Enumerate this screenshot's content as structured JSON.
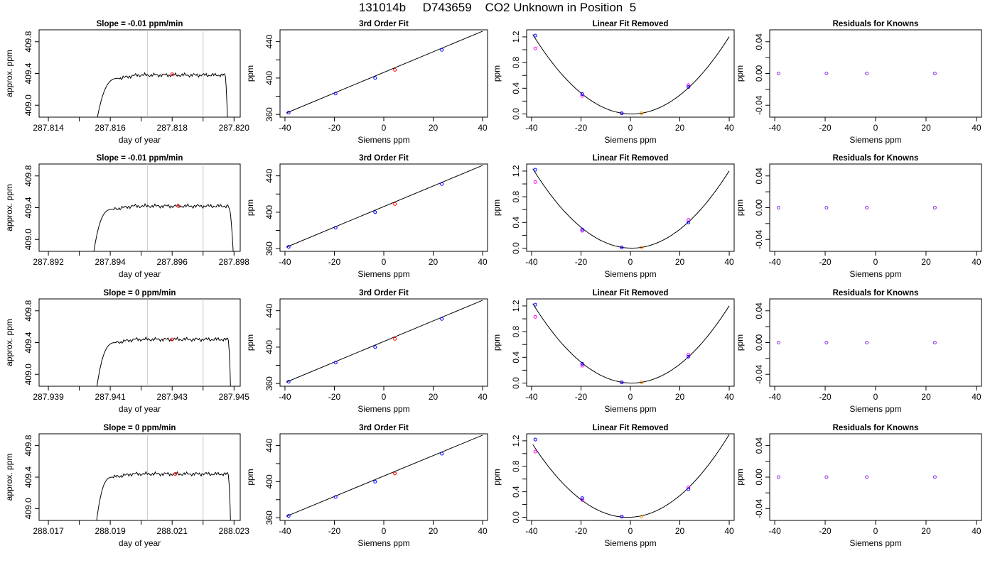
{
  "figure_title": "131014b     D743659    CO2 Unknown in Position  5",
  "colors": {
    "curve": "#000000",
    "vline": "#c8c8c8",
    "known_blue": "#0000ff",
    "known_magenta": "#ff00ff",
    "unknown_red": "#ff0000",
    "unknown_orange": "#ff8c00",
    "residual_purple": "#8a2be2"
  },
  "chart_data": [
    {
      "row": 0,
      "col": 0,
      "type": "line",
      "title": "Slope =  -0.01  ppm/min",
      "xlabel": "day of year",
      "ylabel": "approx. ppm",
      "xlim": [
        287.8137,
        287.8202
      ],
      "ylim": [
        408.85,
        409.95
      ],
      "xticks": [
        287.814,
        287.816,
        287.818,
        287.82
      ],
      "xtick_labels": [
        "287.814",
        "287.816",
        "287.818",
        "287.820"
      ],
      "xminor": [
        287.815,
        287.817,
        287.819
      ],
      "yticks": [
        409.0,
        409.4,
        409.8
      ],
      "ytick_labels": [
        "409.0",
        "409.4",
        "409.8"
      ],
      "trace": {
        "start": 287.8155,
        "rise_end": 287.8163,
        "plateau": 409.38,
        "fall_start": 287.8197,
        "end": 287.8198
      },
      "vlines": [
        287.8172,
        287.819
      ],
      "marker": {
        "x": 287.818,
        "y": 409.39
      }
    },
    {
      "row": 0,
      "col": 1,
      "type": "scatter",
      "title": "3rd Order Fit",
      "xlabel": "Siemens ppm",
      "ylabel": "ppm",
      "xlim": [
        -42,
        42
      ],
      "ylim": [
        357,
        453
      ],
      "xticks": [
        -40,
        -20,
        0,
        20,
        40
      ],
      "xtick_labels": [
        "-40",
        "-20",
        "0",
        "20",
        "40"
      ],
      "yticks": [
        360,
        400,
        440
      ],
      "ytick_labels": [
        "360",
        "400",
        "440"
      ],
      "yminor": [
        380,
        420
      ],
      "line": {
        "x": [
          -39.5,
          40
        ],
        "y": [
          361.5,
          451.5
        ]
      },
      "knowns": [
        {
          "x": -38.5,
          "y": 362
        },
        {
          "x": -19.5,
          "y": 383
        },
        {
          "x": -3.5,
          "y": 400
        },
        {
          "x": 23.5,
          "y": 431
        }
      ],
      "unknown": {
        "x": 4.5,
        "y": 409
      }
    },
    {
      "row": 0,
      "col": 2,
      "type": "scatter",
      "title": "Linear Fit Removed",
      "xlabel": "Siemens ppm",
      "ylabel": "ppm",
      "xlim": [
        -42,
        42
      ],
      "ylim": [
        -0.05,
        1.31
      ],
      "xticks": [
        -40,
        -20,
        0,
        20,
        40
      ],
      "xtick_labels": [
        "-40",
        "-20",
        "0",
        "20",
        "40"
      ],
      "yticks": [
        0.0,
        0.4,
        0.8,
        1.2
      ],
      "ytick_labels": [
        "0.0",
        "0.4",
        "0.8",
        "1.2"
      ],
      "yminor": [
        0.2,
        0.6,
        1.0
      ],
      "curve": {
        "a": 0.000772,
        "b": -0.0008,
        "c": 0.0,
        "x0": -39.5,
        "x1": 40
      },
      "knowns_blue": [
        {
          "x": -38.5,
          "y": 1.22
        },
        {
          "x": -19.5,
          "y": 0.31
        },
        {
          "x": -3.5,
          "y": 0.01
        },
        {
          "x": 23.5,
          "y": 0.42
        }
      ],
      "knowns_magenta": [
        {
          "x": -38.5,
          "y": 1.02
        },
        {
          "x": -19.5,
          "y": 0.28
        },
        {
          "x": -3.5,
          "y": 0.01
        },
        {
          "x": 23.5,
          "y": 0.45
        }
      ],
      "unknown": {
        "x": 4.5,
        "y": 0.01
      }
    },
    {
      "row": 0,
      "col": 3,
      "type": "scatter",
      "title": "Residuals for Knowns",
      "xlabel": "Siemens ppm",
      "ylabel": "ppm",
      "xlim": [
        -42,
        42
      ],
      "ylim": [
        -0.055,
        0.055
      ],
      "xticks": [
        -40,
        -20,
        0,
        20,
        40
      ],
      "xtick_labels": [
        "-40",
        "-20",
        "0",
        "20",
        "40"
      ],
      "yticks": [
        -0.04,
        0.0,
        0.04
      ],
      "ytick_labels": [
        "-0.04",
        "0.00",
        "0.04"
      ],
      "yminor": [
        -0.02,
        0.02
      ],
      "points": [
        {
          "x": -38.5,
          "y": 0
        },
        {
          "x": -19.5,
          "y": 0
        },
        {
          "x": -3.5,
          "y": 0
        },
        {
          "x": 23.5,
          "y": 0
        }
      ]
    },
    {
      "row": 1,
      "col": 0,
      "type": "line",
      "title": "Slope =  -0.01  ppm/min",
      "xlabel": "day of year",
      "ylabel": "approx. ppm",
      "xlim": [
        287.8917,
        287.8982
      ],
      "ylim": [
        408.85,
        409.95
      ],
      "xticks": [
        287.892,
        287.894,
        287.896,
        287.898
      ],
      "xtick_labels": [
        "287.892",
        "287.894",
        "287.896",
        "287.898"
      ],
      "xminor": [
        287.893,
        287.895,
        287.897
      ],
      "yticks": [
        409.0,
        409.4,
        409.8
      ],
      "ytick_labels": [
        "409.0",
        "409.4",
        "409.8"
      ],
      "trace": {
        "start": 287.8934,
        "rise_end": 287.8941,
        "plateau": 409.42,
        "fall_start": 287.8978,
        "end": 287.898
      },
      "vlines": [
        287.8952,
        287.897
      ],
      "marker": {
        "x": 287.8962,
        "y": 409.42
      }
    },
    {
      "row": 1,
      "col": 1,
      "type": "scatter",
      "title": "3rd Order Fit",
      "xlabel": "Siemens ppm",
      "ylabel": "ppm",
      "xlim": [
        -42,
        42
      ],
      "ylim": [
        357,
        453
      ],
      "xticks": [
        -40,
        -20,
        0,
        20,
        40
      ],
      "xtick_labels": [
        "-40",
        "-20",
        "0",
        "20",
        "40"
      ],
      "yticks": [
        360,
        400,
        440
      ],
      "ytick_labels": [
        "360",
        "400",
        "440"
      ],
      "yminor": [
        380,
        420
      ],
      "line": {
        "x": [
          -39.5,
          40
        ],
        "y": [
          361.5,
          451.5
        ]
      },
      "knowns": [
        {
          "x": -38.5,
          "y": 362
        },
        {
          "x": -19.5,
          "y": 383
        },
        {
          "x": -3.5,
          "y": 400
        },
        {
          "x": 23.5,
          "y": 431
        }
      ],
      "unknown": {
        "x": 4.5,
        "y": 409
      }
    },
    {
      "row": 1,
      "col": 2,
      "type": "scatter",
      "title": "Linear Fit Removed",
      "xlabel": "Siemens ppm",
      "ylabel": "ppm",
      "xlim": [
        -42,
        42
      ],
      "ylim": [
        -0.05,
        1.31
      ],
      "xticks": [
        -40,
        -20,
        0,
        20,
        40
      ],
      "xtick_labels": [
        "-40",
        "-20",
        "0",
        "20",
        "40"
      ],
      "yticks": [
        0.0,
        0.4,
        0.8,
        1.2
      ],
      "ytick_labels": [
        "0.0",
        "0.4",
        "0.8",
        "1.2"
      ],
      "yminor": [
        0.2,
        0.6,
        1.0
      ],
      "curve": {
        "a": 0.000772,
        "b": -0.0008,
        "c": 0.0,
        "x0": -39.5,
        "x1": 40
      },
      "knowns_blue": [
        {
          "x": -38.5,
          "y": 1.22
        },
        {
          "x": -19.5,
          "y": 0.29
        },
        {
          "x": -3.5,
          "y": 0.01
        },
        {
          "x": 23.5,
          "y": 0.4
        }
      ],
      "knowns_magenta": [
        {
          "x": -38.5,
          "y": 1.03
        },
        {
          "x": -19.5,
          "y": 0.27
        },
        {
          "x": -3.5,
          "y": 0.01
        },
        {
          "x": 23.5,
          "y": 0.44
        }
      ],
      "unknown": {
        "x": 4.5,
        "y": 0.01
      }
    },
    {
      "row": 1,
      "col": 3,
      "type": "scatter",
      "title": "Residuals for Knowns",
      "xlabel": "Siemens ppm",
      "ylabel": "ppm",
      "xlim": [
        -42,
        42
      ],
      "ylim": [
        -0.055,
        0.055
      ],
      "xticks": [
        -40,
        -20,
        0,
        20,
        40
      ],
      "xtick_labels": [
        "-40",
        "-20",
        "0",
        "20",
        "40"
      ],
      "yticks": [
        -0.04,
        0.0,
        0.04
      ],
      "ytick_labels": [
        "-0.04",
        "0.00",
        "0.04"
      ],
      "yminor": [
        -0.02,
        0.02
      ],
      "points": [
        {
          "x": -38.5,
          "y": 0
        },
        {
          "x": -19.5,
          "y": 0
        },
        {
          "x": -3.5,
          "y": 0
        },
        {
          "x": 23.5,
          "y": 0
        }
      ]
    },
    {
      "row": 2,
      "col": 0,
      "type": "line",
      "title": "Slope =  0  ppm/min",
      "xlabel": "day of year",
      "ylabel": "approx. ppm",
      "xlim": [
        287.9387,
        287.9452
      ],
      "ylim": [
        408.85,
        409.95
      ],
      "xticks": [
        287.939,
        287.941,
        287.943,
        287.945
      ],
      "xtick_labels": [
        "287.939",
        "287.941",
        "287.943",
        "287.945"
      ],
      "xminor": [
        287.94,
        287.942,
        287.944
      ],
      "yticks": [
        409.0,
        409.4,
        409.8
      ],
      "ytick_labels": [
        "409.0",
        "409.4",
        "409.8"
      ],
      "trace": {
        "start": 287.9405,
        "rise_end": 287.9412,
        "plateau": 409.44,
        "fall_start": 287.9448,
        "end": 287.9449
      },
      "vlines": [
        287.9422,
        287.944
      ],
      "marker": {
        "x": 287.943,
        "y": 409.44
      }
    },
    {
      "row": 2,
      "col": 1,
      "type": "scatter",
      "title": "3rd Order Fit",
      "xlabel": "Siemens ppm",
      "ylabel": "ppm",
      "xlim": [
        -42,
        42
      ],
      "ylim": [
        357,
        453
      ],
      "xticks": [
        -40,
        -20,
        0,
        20,
        40
      ],
      "xtick_labels": [
        "-40",
        "-20",
        "0",
        "20",
        "40"
      ],
      "yticks": [
        360,
        400,
        440
      ],
      "ytick_labels": [
        "360",
        "400",
        "440"
      ],
      "yminor": [
        380,
        420
      ],
      "line": {
        "x": [
          -39.5,
          40
        ],
        "y": [
          361.5,
          451.5
        ]
      },
      "knowns": [
        {
          "x": -38.5,
          "y": 362
        },
        {
          "x": -19.5,
          "y": 383
        },
        {
          "x": -3.5,
          "y": 400
        },
        {
          "x": 23.5,
          "y": 431
        }
      ],
      "unknown": {
        "x": 4.5,
        "y": 409
      }
    },
    {
      "row": 2,
      "col": 2,
      "type": "scatter",
      "title": "Linear Fit Removed",
      "xlabel": "Siemens ppm",
      "ylabel": "ppm",
      "xlim": [
        -42,
        42
      ],
      "ylim": [
        -0.05,
        1.31
      ],
      "xticks": [
        -40,
        -20,
        0,
        20,
        40
      ],
      "xtick_labels": [
        "-40",
        "-20",
        "0",
        "20",
        "40"
      ],
      "yticks": [
        0.0,
        0.4,
        0.8,
        1.2
      ],
      "ytick_labels": [
        "0.0",
        "0.4",
        "0.8",
        "1.2"
      ],
      "yminor": [
        0.2,
        0.6,
        1.0
      ],
      "curve": {
        "a": 0.000772,
        "b": -0.0008,
        "c": 0.0,
        "x0": -39.5,
        "x1": 40
      },
      "knowns_blue": [
        {
          "x": -38.5,
          "y": 1.22
        },
        {
          "x": -19.5,
          "y": 0.3
        },
        {
          "x": -3.5,
          "y": 0.01
        },
        {
          "x": 23.5,
          "y": 0.41
        }
      ],
      "knowns_magenta": [
        {
          "x": -38.5,
          "y": 1.03
        },
        {
          "x": -19.5,
          "y": 0.27
        },
        {
          "x": -3.5,
          "y": 0.01
        },
        {
          "x": 23.5,
          "y": 0.44
        }
      ],
      "unknown": {
        "x": 4.5,
        "y": 0.01
      }
    },
    {
      "row": 2,
      "col": 3,
      "type": "scatter",
      "title": "Residuals for Knowns",
      "xlabel": "Siemens ppm",
      "ylabel": "ppm",
      "xlim": [
        -42,
        42
      ],
      "ylim": [
        -0.055,
        0.055
      ],
      "xticks": [
        -40,
        -20,
        0,
        20,
        40
      ],
      "xtick_labels": [
        "-40",
        "-20",
        "0",
        "20",
        "40"
      ],
      "yticks": [
        -0.04,
        0.0,
        0.04
      ],
      "ytick_labels": [
        "-0.04",
        "0.00",
        "0.04"
      ],
      "yminor": [
        -0.02,
        0.02
      ],
      "points": [
        {
          "x": -38.5,
          "y": 0
        },
        {
          "x": -19.5,
          "y": 0
        },
        {
          "x": -3.5,
          "y": 0
        },
        {
          "x": 23.5,
          "y": 0
        }
      ]
    },
    {
      "row": 3,
      "col": 0,
      "type": "line",
      "title": "Slope =  0  ppm/min",
      "xlabel": "day of year",
      "ylabel": "approx. ppm",
      "xlim": [
        288.0167,
        288.0232
      ],
      "ylim": [
        408.85,
        409.95
      ],
      "xticks": [
        288.017,
        288.019,
        288.021,
        288.023
      ],
      "xtick_labels": [
        "288.017",
        "288.019",
        "288.021",
        "288.023"
      ],
      "xminor": [
        288.018,
        288.02,
        288.022
      ],
      "yticks": [
        409.0,
        409.4,
        409.8
      ],
      "ytick_labels": [
        "409.0",
        "409.4",
        "409.8"
      ],
      "trace": {
        "start": 288.0185,
        "rise_end": 288.0191,
        "plateau": 409.44,
        "fall_start": 288.0228,
        "end": 288.0229
      },
      "vlines": [
        288.0202,
        288.022
      ],
      "marker": {
        "x": 288.0211,
        "y": 409.44
      }
    },
    {
      "row": 3,
      "col": 1,
      "type": "scatter",
      "title": "3rd Order Fit",
      "xlabel": "Siemens ppm",
      "ylabel": "ppm",
      "xlim": [
        -42,
        42
      ],
      "ylim": [
        357,
        453
      ],
      "xticks": [
        -40,
        -20,
        0,
        20,
        40
      ],
      "xtick_labels": [
        "-40",
        "-20",
        "0",
        "20",
        "40"
      ],
      "yticks": [
        360,
        400,
        440
      ],
      "ytick_labels": [
        "360",
        "400",
        "440"
      ],
      "yminor": [
        380,
        420
      ],
      "line": {
        "x": [
          -39.5,
          40
        ],
        "y": [
          361.5,
          451.5
        ]
      },
      "knowns": [
        {
          "x": -38.5,
          "y": 362
        },
        {
          "x": -19.5,
          "y": 383
        },
        {
          "x": -3.5,
          "y": 400
        },
        {
          "x": 23.5,
          "y": 431
        }
      ],
      "unknown": {
        "x": 4.5,
        "y": 409
      }
    },
    {
      "row": 3,
      "col": 2,
      "type": "scatter",
      "title": "Linear Fit Removed",
      "xlabel": "Siemens ppm",
      "ylabel": "ppm",
      "xlim": [
        -42,
        42
      ],
      "ylim": [
        -0.05,
        1.31
      ],
      "xticks": [
        -40,
        -20,
        0,
        20,
        40
      ],
      "xtick_labels": [
        "-40",
        "-20",
        "0",
        "20",
        "40"
      ],
      "yticks": [
        0.0,
        0.4,
        0.8,
        1.2
      ],
      "ytick_labels": [
        "0.0",
        "0.4",
        "0.8",
        "1.2"
      ],
      "yminor": [
        0.2,
        0.6,
        1.0
      ],
      "curve": {
        "a": 0.000772,
        "b": 0.0016,
        "c": 0.0,
        "x0": -39.5,
        "x1": 40
      },
      "knowns_blue": [
        {
          "x": -38.5,
          "y": 1.22
        },
        {
          "x": -19.5,
          "y": 0.3
        },
        {
          "x": -3.5,
          "y": 0.01
        },
        {
          "x": 23.5,
          "y": 0.44
        }
      ],
      "knowns_magenta": [
        {
          "x": -38.5,
          "y": 1.03
        },
        {
          "x": -19.5,
          "y": 0.27
        },
        {
          "x": -3.5,
          "y": 0.01
        },
        {
          "x": 23.5,
          "y": 0.47
        }
      ],
      "unknown": {
        "x": 4.5,
        "y": 0.01
      }
    },
    {
      "row": 3,
      "col": 3,
      "type": "scatter",
      "title": "Residuals for Knowns",
      "xlabel": "Siemens ppm",
      "ylabel": "ppm",
      "xlim": [
        -42,
        42
      ],
      "ylim": [
        -0.055,
        0.055
      ],
      "xticks": [
        -40,
        -20,
        0,
        20,
        40
      ],
      "xtick_labels": [
        "-40",
        "-20",
        "0",
        "20",
        "40"
      ],
      "yticks": [
        -0.04,
        0.0,
        0.04
      ],
      "ytick_labels": [
        "-0.04",
        "0.00",
        "0.04"
      ],
      "yminor": [
        -0.02,
        0.02
      ],
      "points": [
        {
          "x": -38.5,
          "y": 0
        },
        {
          "x": -19.5,
          "y": 0
        },
        {
          "x": -3.5,
          "y": 0
        },
        {
          "x": 23.5,
          "y": 0
        }
      ]
    }
  ]
}
